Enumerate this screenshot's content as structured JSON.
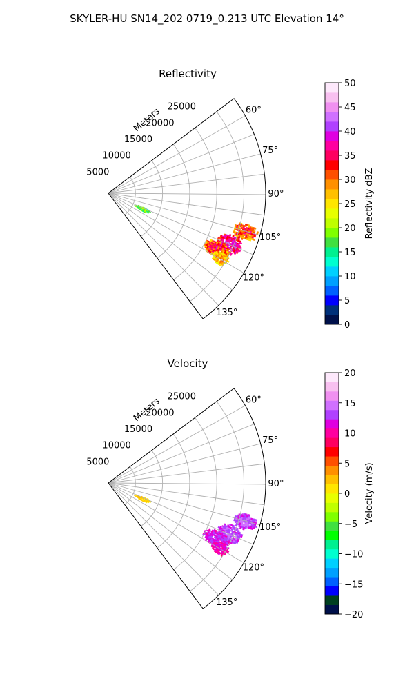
{
  "figure_title": "SKYLER-HU  SN14_202  0719_0.213 UTC Elevation 14°",
  "chart_data": [
    {
      "type": "heatmap",
      "title": "Reflectivity",
      "projection": "polar-sector",
      "radial_axis_label": "Meters",
      "radial_ticks": [
        "5000",
        "10000",
        "15000",
        "20000",
        "25000"
      ],
      "radial_tick_values": [
        5000,
        10000,
        15000,
        20000,
        25000
      ],
      "r_max": 29000,
      "theta_range_deg": [
        53,
        143
      ],
      "theta_ticks": [
        "60°",
        "75°",
        "90°",
        "105°",
        "120°",
        "135°"
      ],
      "theta_tick_values": [
        60,
        75,
        90,
        105,
        120,
        135
      ],
      "grid": true,
      "colorbar": {
        "label": "Reflectivity dBZ",
        "range": [
          0,
          50
        ],
        "ticks": [
          "0",
          "5",
          "10",
          "15",
          "20",
          "25",
          "30",
          "35",
          "40",
          "45",
          "50"
        ],
        "tick_values": [
          0,
          5,
          10,
          15,
          20,
          25,
          30,
          35,
          40,
          45,
          50
        ],
        "colors": [
          "#00104a",
          "#00307a",
          "#0000ff",
          "#0060ff",
          "#00a0ff",
          "#00d0ff",
          "#00ffd0",
          "#00f090",
          "#40e040",
          "#80ff00",
          "#c0ff00",
          "#e8ff00",
          "#ffe600",
          "#ffc000",
          "#ff9000",
          "#ff5000",
          "#ff0000",
          "#ff0060",
          "#ff00a0",
          "#e000e0",
          "#b040ff",
          "#d070ff",
          "#f090f0",
          "#f8c0f0",
          "#fde8fb"
        ]
      },
      "echo_regions": [
        {
          "theta": [
            102,
            109
          ],
          "r": [
            23500,
            28500
          ],
          "value": 28,
          "spread": 9
        },
        {
          "theta": [
            108,
            117
          ],
          "r": [
            21500,
            26500
          ],
          "value": 33,
          "spread": 9
        },
        {
          "theta": [
            113,
            121
          ],
          "r": [
            19500,
            25000
          ],
          "value": 28,
          "spread": 10
        },
        {
          "theta": [
            117,
            123
          ],
          "r": [
            22000,
            25500
          ],
          "value": 24,
          "spread": 7
        },
        {
          "theta": [
            111,
            118
          ],
          "r": [
            5000,
            8500
          ],
          "value": 15,
          "spread": 8
        }
      ]
    },
    {
      "type": "heatmap",
      "title": "Velocity",
      "projection": "polar-sector",
      "radial_axis_label": "Meters",
      "radial_ticks": [
        "5000",
        "10000",
        "15000",
        "20000",
        "25000"
      ],
      "radial_tick_values": [
        5000,
        10000,
        15000,
        20000,
        25000
      ],
      "r_max": 29000,
      "theta_range_deg": [
        53,
        143
      ],
      "theta_ticks": [
        "60°",
        "75°",
        "90°",
        "105°",
        "120°",
        "135°"
      ],
      "theta_tick_values": [
        60,
        75,
        90,
        105,
        120,
        135
      ],
      "grid": true,
      "colorbar": {
        "label": "Velocity (m/s)",
        "range": [
          -20,
          20
        ],
        "ticks": [
          "−20",
          "−15",
          "−10",
          "−5",
          "0",
          "5",
          "10",
          "15",
          "20"
        ],
        "tick_values": [
          -20,
          -15,
          -10,
          -5,
          0,
          5,
          10,
          15,
          20
        ],
        "colors": [
          "#00104a",
          "#004020",
          "#0000ff",
          "#0060ff",
          "#00a0ff",
          "#00d0ff",
          "#00ffd0",
          "#00f090",
          "#00ff00",
          "#40e040",
          "#80ff00",
          "#c0ff00",
          "#e8ff00",
          "#ffe600",
          "#ffc000",
          "#ff9000",
          "#ff5000",
          "#ff0000",
          "#ff0060",
          "#ff00a0",
          "#e000e0",
          "#b040ff",
          "#d070ff",
          "#f090f0",
          "#f8c0f0",
          "#fde8fb"
        ]
      },
      "echo_regions": [
        {
          "theta": [
            102,
            109
          ],
          "r": [
            23500,
            28500
          ],
          "value": 12,
          "spread": 3
        },
        {
          "theta": [
            108,
            117
          ],
          "r": [
            21500,
            26500
          ],
          "value": 12,
          "spread": 3
        },
        {
          "theta": [
            113,
            121
          ],
          "r": [
            19500,
            25000
          ],
          "value": 11,
          "spread": 3
        },
        {
          "theta": [
            117,
            123
          ],
          "r": [
            22000,
            25500
          ],
          "value": 10,
          "spread": 2
        },
        {
          "theta": [
            111,
            118
          ],
          "r": [
            5000,
            8500
          ],
          "value": 1,
          "spread": 1.5
        }
      ]
    }
  ]
}
